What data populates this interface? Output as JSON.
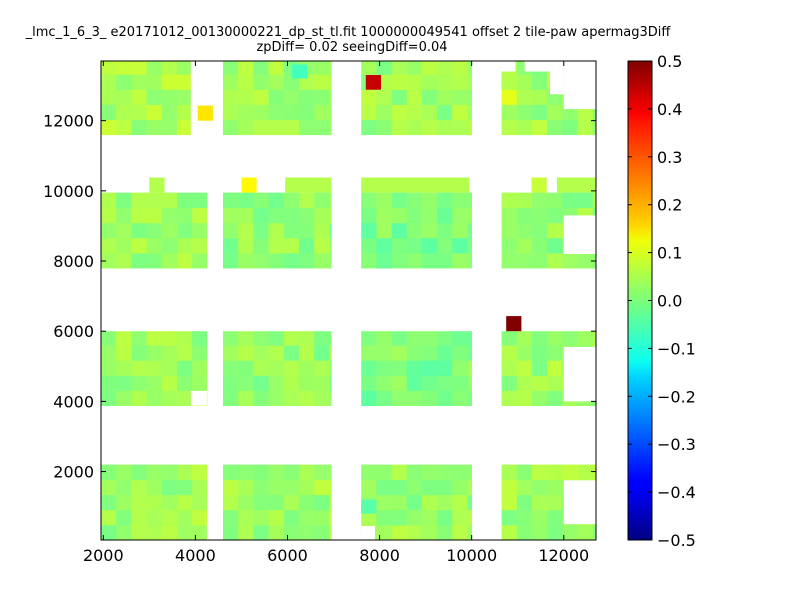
{
  "chart_data": {
    "type": "heatmap",
    "title_line1": "_lmc_1_6_3_ e20171012_00130000221_dp_st_tl.fit 1000000049541 offset 2 tile-paw apermag3Diff",
    "title_line2": "zpDiff= 0.02 seeingDiff=0.04",
    "xlabel": "",
    "ylabel": "",
    "xlim": [
      1950,
      12700
    ],
    "ylim": [
      50,
      13700
    ],
    "xticks": [
      2000,
      4000,
      6000,
      8000,
      10000,
      12000
    ],
    "yticks": [
      2000,
      4000,
      6000,
      8000,
      10000,
      12000
    ],
    "colorbar": {
      "min": -0.5,
      "max": 0.5,
      "ticks": [
        -0.5,
        -0.4,
        -0.3,
        -0.2,
        -0.1,
        0.0,
        0.1,
        0.2,
        0.3,
        0.4,
        0.5
      ],
      "tick_labels": [
        "−0.5",
        "−0.4",
        "−0.3",
        "−0.2",
        "−0.1",
        "0.0",
        "0.1",
        "0.2",
        "0.3",
        "0.4",
        "0.5"
      ],
      "colormap": "jet"
    },
    "cell_size": [
      330,
      430
    ],
    "regions": [
      {
        "x": [
          1950,
          4250
        ],
        "y": [
          50,
          2200
        ],
        "value": 0.03
      },
      {
        "x": [
          4600,
          6950
        ],
        "y": [
          50,
          2200
        ],
        "value": 0.03
      },
      {
        "x": [
          7600,
          10000
        ],
        "y": [
          50,
          2200
        ],
        "value": 0.02
      },
      {
        "x": [
          10650,
          12700
        ],
        "y": [
          50,
          2200
        ],
        "value": 0.03
      },
      {
        "x": [
          1950,
          4250
        ],
        "y": [
          3880,
          6000
        ],
        "value": 0.03
      },
      {
        "x": [
          4600,
          6950
        ],
        "y": [
          3880,
          6000
        ],
        "value": 0.02
      },
      {
        "x": [
          7600,
          10000
        ],
        "y": [
          3880,
          6000
        ],
        "value": 0.0
      },
      {
        "x": [
          10650,
          12700
        ],
        "y": [
          3880,
          6000
        ],
        "value": 0.03
      },
      {
        "x": [
          1950,
          4250
        ],
        "y": [
          7800,
          9950
        ],
        "value": 0.03
      },
      {
        "x": [
          4600,
          6950
        ],
        "y": [
          7800,
          9950
        ],
        "value": 0.02
      },
      {
        "x": [
          7600,
          10000
        ],
        "y": [
          7800,
          9950
        ],
        "value": 0.0
      },
      {
        "x": [
          10650,
          12700
        ],
        "y": [
          7800,
          9950
        ],
        "value": 0.02
      },
      {
        "x": [
          1950,
          3900
        ],
        "y": [
          11600,
          13700
        ],
        "value": 0.04
      },
      {
        "x": [
          4600,
          6950
        ],
        "y": [
          11600,
          13700
        ],
        "value": 0.03
      },
      {
        "x": [
          7600,
          10000
        ],
        "y": [
          11600,
          13700
        ],
        "value": 0.03
      },
      {
        "x": [
          10650,
          12700
        ],
        "y": [
          11600,
          13700
        ],
        "value": 0.03
      }
    ],
    "blank_areas": [
      {
        "x": [
          3900,
          4250
        ],
        "y": [
          11600,
          13700
        ]
      },
      {
        "x": [
          12000,
          12700
        ],
        "y": [
          12330,
          13700
        ]
      },
      {
        "x": [
          11700,
          12000
        ],
        "y": [
          12750,
          13700
        ]
      },
      {
        "x": [
          11150,
          11700
        ],
        "y": [
          13400,
          13700
        ]
      },
      {
        "x": [
          10650,
          10950
        ],
        "y": [
          13400,
          13700
        ]
      },
      {
        "x": [
          12000,
          12700
        ],
        "y": [
          8200,
          9300
        ]
      },
      {
        "x": [
          12000,
          12700
        ],
        "y": [
          4000,
          5550
        ]
      },
      {
        "x": [
          12000,
          12700
        ],
        "y": [
          500,
          1750
        ]
      },
      {
        "x": [
          4250,
          4600
        ],
        "y": [
          50,
          500
        ]
      },
      {
        "x": [
          7600,
          7900
        ],
        "y": [
          50,
          450
        ]
      },
      {
        "x": [
          3900,
          4250
        ],
        "y": [
          3880,
          4300
        ]
      }
    ],
    "isolated_cells": [
      {
        "x": [
          3000,
          3330
        ],
        "y": [
          9950,
          10380
        ],
        "value": 0.05
      },
      {
        "x": [
          4050,
          4380
        ],
        "y": [
          12000,
          12430
        ],
        "value": 0.15
      },
      {
        "x": [
          5000,
          5330
        ],
        "y": [
          9950,
          10380
        ],
        "value": 0.13
      },
      {
        "x": [
          5950,
          6950
        ],
        "y": [
          9950,
          10380
        ],
        "value": 0.05
      },
      {
        "x": [
          7600,
          9950
        ],
        "y": [
          9950,
          10380
        ],
        "value": 0.05
      },
      {
        "x": [
          7700,
          8030
        ],
        "y": [
          12880,
          13300
        ],
        "value": 0.43
      },
      {
        "x": [
          10650,
          10980
        ],
        "y": [
          12450,
          12880
        ],
        "value": 0.1
      },
      {
        "x": [
          10650,
          10980
        ],
        "y": [
          12880,
          13300
        ],
        "value": 0.05
      },
      {
        "x": [
          11300,
          11630
        ],
        "y": [
          9950,
          10380
        ],
        "value": 0.07
      },
      {
        "x": [
          11850,
          12700
        ],
        "y": [
          9950,
          10380
        ],
        "value": 0.05
      },
      {
        "x": [
          10750,
          11080
        ],
        "y": [
          6000,
          6430
        ],
        "value": 0.5
      },
      {
        "x": [
          8300,
          8630
        ],
        "y": [
          50,
          430
        ],
        "value": 0.06
      },
      {
        "x": [
          7600,
          7930
        ],
        "y": [
          800,
          1200
        ],
        "value": -0.04
      },
      {
        "x": [
          6100,
          6430
        ],
        "y": [
          13200,
          13600
        ],
        "value": -0.06
      }
    ]
  }
}
